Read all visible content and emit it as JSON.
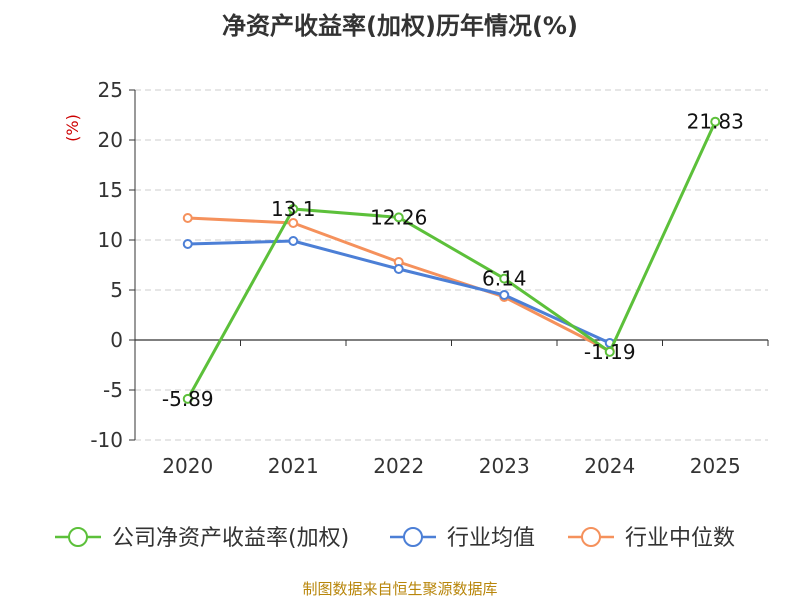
{
  "chart_data": {
    "type": "line",
    "title": "净资产收益率(加权)历年情况(%)",
    "ylabel": "(%)",
    "xlabel": "",
    "categories": [
      "2020",
      "2021",
      "2022",
      "2023",
      "2024",
      "2025"
    ],
    "ylim": [
      -10,
      25
    ],
    "yticks": [
      25,
      20,
      15,
      10,
      5,
      0,
      -5,
      -10
    ],
    "grid": true,
    "legend_position": "bottom",
    "series": [
      {
        "name": "公司净资产收益率(加权)",
        "values": [
          -5.89,
          13.1,
          12.26,
          6.14,
          -1.19,
          21.83
        ],
        "color": "#5cc03a",
        "labels": [
          "-5.89",
          "13.1",
          "12.26",
          "6.14",
          "-1.19",
          "21.83"
        ]
      },
      {
        "name": "行业均值",
        "values": [
          9.6,
          9.9,
          7.1,
          4.5,
          -0.3,
          null
        ],
        "color": "#4c7fd6"
      },
      {
        "name": "行业中位数",
        "values": [
          12.2,
          11.7,
          7.8,
          4.3,
          -1.1,
          null
        ],
        "color": "#f5915c"
      }
    ]
  },
  "footer": {
    "source": "制图数据来自恒生聚源数据库"
  }
}
